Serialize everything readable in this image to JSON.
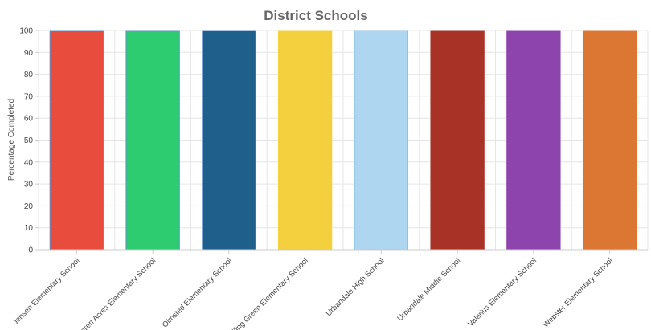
{
  "chart_data": {
    "type": "bar",
    "title": "District Schools",
    "xlabel": "",
    "ylabel": "Percentage Completed",
    "ylim": [
      0,
      100
    ],
    "yticks": [
      0,
      10,
      20,
      30,
      40,
      50,
      60,
      70,
      80,
      90,
      100
    ],
    "grid": true,
    "legend": "none",
    "categories": [
      "Jensen Elementary School",
      "Karen Acres Elementary School",
      "Olmsted Elementary School",
      "Rolling Green Elementary School",
      "Urbandale High School",
      "Urbandale Middle School",
      "Valerius Elementary School",
      "Webster Elementary School"
    ],
    "values": [
      100,
      100,
      100,
      100,
      100,
      100,
      100,
      100
    ],
    "colors": [
      "#e74c3c",
      "#2ecc71",
      "#1f5f8b",
      "#f4d03f",
      "#aed6f1",
      "#a93226",
      "#8e44ad",
      "#dc7633"
    ],
    "border_colors": [
      "#5b8ec9",
      "#5b8ec9",
      "#5b8ec9",
      "#f4d03f",
      "#8fc3e6",
      "#a93226",
      "#8e44ad",
      "#dc7633"
    ]
  }
}
